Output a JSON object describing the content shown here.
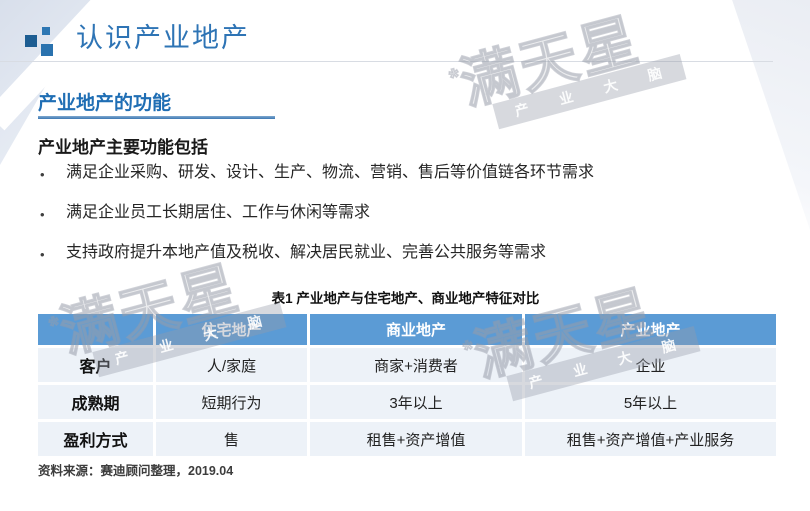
{
  "header": {
    "title": "认识产业地产"
  },
  "section": {
    "title": "产业地产的功能"
  },
  "content": {
    "subtitle": "产业地产主要功能包括",
    "bullet_char": "•",
    "bullets": [
      "满足企业采购、研发、设计、生产、物流、营销、售后等价值链各环节需求",
      "满足企业员工长期居住、工作与休闲等需求",
      "支持政府提升本地产值及税收、解决居民就业、完善公共服务等需求"
    ]
  },
  "table": {
    "caption": "表1 产业地产与住宅地产、商业地产特征对比",
    "columns": [
      "",
      "住宅地产",
      "商业地产",
      "产业地产"
    ],
    "rows": [
      {
        "label": "客户",
        "values": [
          "人/家庭",
          "商家+消费者",
          "企业"
        ]
      },
      {
        "label": "成熟期",
        "values": [
          "短期行为",
          "3年以上",
          "5年以上"
        ]
      },
      {
        "label": "盈利方式",
        "values": [
          "售",
          "租售+资产增值",
          "租售+资产增值+产业服务"
        ]
      }
    ]
  },
  "footer": {
    "source": "资料来源：赛迪顾问整理，2019.04"
  },
  "watermark": {
    "star": "*",
    "text": "满天星",
    "band": "产 业 大 脑"
  },
  "colors": {
    "accent": "#2e74b5",
    "section_title": "#1f6eb4",
    "table_header_bg": "#5b9bd5",
    "table_row_bg": "#edf2f8"
  }
}
